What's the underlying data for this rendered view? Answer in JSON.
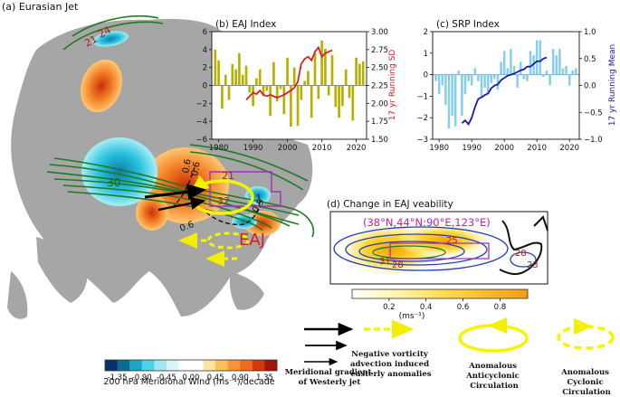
{
  "panels": {
    "a_title": "(a) Eurasian Jet",
    "b_title": "(b) EAJ Index",
    "c_title": "(c) SRP Index",
    "d_title": "(d) Change in EAJ veability"
  },
  "map_a": {
    "contour_labels": [
      "21",
      "24",
      "30",
      "0.6",
      "0.6",
      "21",
      "32",
      "0.6",
      "0.9"
    ],
    "eaj_label": "EAJ",
    "colorbar": {
      "ticks": [
        "-1.35",
        "-0.90",
        "-0.45",
        "0.00",
        "0.45",
        "0.90",
        "1.35"
      ],
      "label": "200 hPa Meridional Wind (ms⁻¹)/decade",
      "colors": [
        "#08306b",
        "#0a6d8e",
        "#1aa7c4",
        "#4fd0e6",
        "#9ee6f2",
        "#d8f5f9",
        "#ffffff",
        "#ffffff",
        "#ffe3a0",
        "#ffbf55",
        "#ff9433",
        "#f26a1b",
        "#d23a0d",
        "#a3140a"
      ]
    }
  },
  "chart_data": [
    {
      "id": "b",
      "type": "bar",
      "title": "(b) EAJ Index",
      "y2label": "17 yr Running SD",
      "x_ticks": [
        "1980",
        "1990",
        "2000",
        "2010",
        "2020"
      ],
      "y_ticks": [
        "6",
        "4",
        "2",
        "0",
        "−2",
        "−4",
        "−6"
      ],
      "y2_ticks": [
        "3.00",
        "2.75",
        "2.50",
        "2.25",
        "2.00",
        "1.75",
        "1.50"
      ],
      "ylim": [
        -6,
        6
      ],
      "y2lim": [
        1.5,
        3.0
      ],
      "xlim": [
        1978,
        2023
      ],
      "bar_color": "#b8b000",
      "line_color": "#d62020",
      "years": [
        1979,
        1980,
        1981,
        1982,
        1983,
        1984,
        1985,
        1986,
        1987,
        1988,
        1989,
        1990,
        1991,
        1992,
        1993,
        1994,
        1995,
        1996,
        1997,
        1998,
        1999,
        2000,
        2001,
        2002,
        2003,
        2004,
        2005,
        2006,
        2007,
        2008,
        2009,
        2010,
        2011,
        2012,
        2013,
        2014,
        2015,
        2016,
        2017,
        2018,
        2019,
        2020,
        2021,
        2022
      ],
      "values": [
        4.0,
        2.8,
        -2.6,
        1.2,
        -1.6,
        2.4,
        1.8,
        3.6,
        1.2,
        2.2,
        -0.8,
        -2.3,
        0.8,
        1.8,
        -1.2,
        -0.6,
        -3.4,
        2.6,
        -1.8,
        -0.4,
        -3.2,
        3.1,
        -4.6,
        2.0,
        -4.5,
        -1.6,
        0.5,
        1.6,
        -3.6,
        3.6,
        -1.5,
        5.0,
        4.1,
        -1.1,
        3.4,
        -2.4,
        -3.6,
        -2.3,
        1.8,
        -1.4,
        -3.9,
        3.1,
        2.4,
        2.7
      ],
      "sd_years": [
        1988,
        1989,
        1990,
        1991,
        1992,
        1993,
        1994,
        1995,
        1996,
        1997,
        1998,
        1999,
        2000,
        2001,
        2002,
        2003,
        2004,
        2005,
        2006,
        2007,
        2008,
        2009,
        2010,
        2011,
        2012,
        2013
      ],
      "sd_values": [
        2.05,
        2.1,
        2.15,
        2.13,
        2.18,
        2.12,
        2.1,
        2.12,
        2.1,
        2.08,
        2.1,
        2.12,
        2.15,
        2.18,
        2.22,
        2.3,
        2.55,
        2.62,
        2.65,
        2.6,
        2.72,
        2.78,
        2.65,
        2.7,
        2.72,
        2.74
      ]
    },
    {
      "id": "c",
      "type": "bar",
      "title": "(c) SRP Index",
      "y2label": "17 yr Running Mean",
      "x_ticks": [
        "1980",
        "1990",
        "2000",
        "2010",
        "2020"
      ],
      "y_ticks": [
        "2",
        "1",
        "0",
        "−1",
        "−2",
        "−3"
      ],
      "y2_ticks": [
        "1.0",
        "0.5",
        "0.0",
        "−0.5",
        "−1.0"
      ],
      "ylim": [
        -3,
        2
      ],
      "y2lim": [
        -1.0,
        1.0
      ],
      "xlim": [
        1978,
        2023
      ],
      "bar_color": "#87ceeb",
      "line_color": "#1a1aa8",
      "years": [
        1979,
        1980,
        1981,
        1982,
        1983,
        1984,
        1985,
        1986,
        1987,
        1988,
        1989,
        1990,
        1991,
        1992,
        1993,
        1994,
        1995,
        1996,
        1997,
        1998,
        1999,
        2000,
        2001,
        2002,
        2003,
        2004,
        2005,
        2006,
        2007,
        2008,
        2009,
        2010,
        2011,
        2012,
        2013,
        2014,
        2015,
        2016,
        2017,
        2018,
        2019,
        2020,
        2021,
        2022
      ],
      "values": [
        -0.3,
        -0.9,
        -0.5,
        -1.4,
        -2.5,
        -1.9,
        -2.4,
        0.2,
        -1.9,
        -0.9,
        -0.3,
        -0.5,
        0.3,
        -0.3,
        -1.1,
        -0.6,
        -0.9,
        -0.4,
        -0.2,
        -0.7,
        0.6,
        1.1,
        0.3,
        1.2,
        0.4,
        -0.6,
        0.6,
        -0.2,
        -0.3,
        1.1,
        0.9,
        1.6,
        1.6,
        -0.1,
        0.2,
        -0.5,
        1.2,
        0.9,
        1.2,
        0.3,
        0.4,
        -0.5,
        0.2,
        0.3
      ],
      "mean_years": [
        1987,
        1988,
        1989,
        1990,
        1991,
        1992,
        1993,
        1994,
        1995,
        1996,
        1997,
        1998,
        1999,
        2000,
        2001,
        2002,
        2003,
        2004,
        2005,
        2006,
        2007,
        2008,
        2009,
        2010,
        2011,
        2012,
        2013
      ],
      "mean_values": [
        -0.7,
        -0.65,
        -0.72,
        -0.6,
        -0.4,
        -0.25,
        -0.22,
        -0.18,
        -0.15,
        -0.05,
        0.0,
        0.02,
        0.1,
        0.14,
        0.18,
        0.2,
        0.22,
        0.25,
        0.28,
        0.3,
        0.35,
        0.35,
        0.4,
        0.45,
        0.45,
        0.5,
        0.52
      ]
    }
  ],
  "panel_d": {
    "region": "(38°N,44°N:90°E,123°E)",
    "contour_labels": [
      "25",
      "31",
      "28",
      "28",
      "23"
    ],
    "colorbar_ticks": [
      "0.2",
      "0.4",
      "0.6",
      "0.8"
    ],
    "colorbar_unit": "(ms⁻¹)"
  },
  "legend": {
    "items": [
      "Meridional gradient of Westerly jet",
      "Negative vorticity advection induced easterly anomalies",
      "Anomalous Anticyclonic Circulation",
      "Anomalous Cyclonic Circulation"
    ]
  }
}
